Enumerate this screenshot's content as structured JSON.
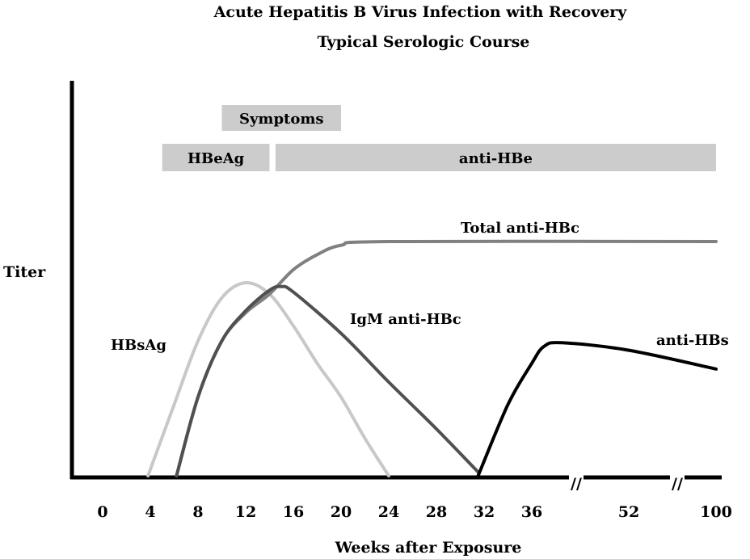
{
  "chart_data": {
    "type": "line",
    "title": "Acute Hepatitis B Virus Infection with Recovery",
    "subtitle": "Typical Serologic Course",
    "xlabel": "Weeks after Exposure",
    "ylabel": "Titer",
    "x_ticks": [
      "0",
      "4",
      "8",
      "12",
      "16",
      "20",
      "24",
      "28",
      "32",
      "36",
      "52",
      "100"
    ],
    "axis_break_symbol": "//",
    "grid": false,
    "bars": [
      {
        "label": "Symptoms",
        "start": 10,
        "end": 20,
        "color": "#cccccc"
      },
      {
        "label": "HBeAg",
        "start": 5,
        "end": 14,
        "color": "#cccccc"
      },
      {
        "label": "anti-HBe",
        "start": 14.5,
        "end": 100,
        "color": "#cccccc"
      }
    ],
    "series": [
      {
        "name": "HBsAg",
        "color": "#c8c8c8",
        "points": [
          [
            3.8,
            0
          ],
          [
            6,
            0.38
          ],
          [
            8,
            0.72
          ],
          [
            10,
            0.95
          ],
          [
            12,
            1.03
          ],
          [
            14,
            0.97
          ],
          [
            16,
            0.8
          ],
          [
            18,
            0.6
          ],
          [
            20,
            0.42
          ],
          [
            22,
            0.2
          ],
          [
            24,
            0
          ]
        ]
      },
      {
        "name": "Total anti-HBc",
        "color": "#808080",
        "points": [
          [
            6.2,
            0
          ],
          [
            8,
            0.42
          ],
          [
            10,
            0.72
          ],
          [
            12,
            0.87
          ],
          [
            14,
            0.97
          ],
          [
            16,
            1.1
          ],
          [
            18,
            1.18
          ],
          [
            20,
            1.23
          ],
          [
            24,
            1.25
          ],
          [
            100,
            1.25
          ]
        ]
      },
      {
        "name": "IgM anti-HBc",
        "color": "#505050",
        "points": [
          [
            6.2,
            0
          ],
          [
            8,
            0.42
          ],
          [
            10,
            0.72
          ],
          [
            12,
            0.88
          ],
          [
            14,
            0.99
          ],
          [
            15,
            1.01
          ],
          [
            16,
            0.98
          ],
          [
            20,
            0.76
          ],
          [
            24,
            0.5
          ],
          [
            28,
            0.25
          ],
          [
            31.5,
            0.02
          ]
        ]
      },
      {
        "name": "anti-HBs",
        "color": "#000000",
        "points": [
          [
            31.5,
            0
          ],
          [
            34,
            0.38
          ],
          [
            36,
            0.6
          ],
          [
            38,
            0.69
          ],
          [
            41,
            0.71
          ],
          [
            52,
            0.67
          ],
          [
            100,
            0.57
          ]
        ]
      }
    ]
  }
}
